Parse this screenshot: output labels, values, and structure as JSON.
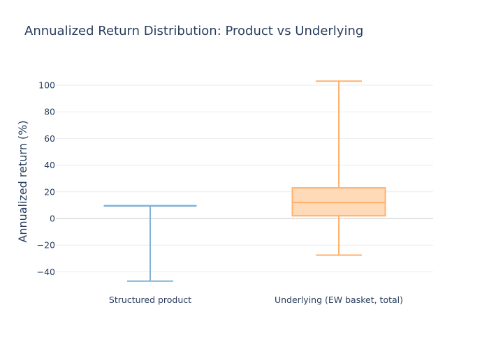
{
  "chart_data": {
    "type": "box",
    "title": "Annualized Return Distribution: Product vs Underlying",
    "ylabel": "Annualized return (%)",
    "xlabel": "",
    "ylim": [
      -48,
      114
    ],
    "yticks": [
      -40,
      -20,
      0,
      20,
      40,
      60,
      80,
      100
    ],
    "ytick_labels": [
      "−40",
      "−20",
      "0",
      "20",
      "40",
      "60",
      "80",
      "100"
    ],
    "grid": true,
    "legend": "none",
    "categories": [
      "Structured product",
      "Underlying (EW basket, total)"
    ],
    "series": [
      {
        "category": "Structured product",
        "min": -47,
        "q1": 9.5,
        "median": 9.5,
        "q3": 9.5,
        "max": 9.5,
        "color": "#7fb3d8"
      },
      {
        "category": "Underlying (EW basket, total)",
        "min": -27.5,
        "q1": 2,
        "median": 12,
        "q3": 23,
        "max": 103,
        "color": "#ffb16e",
        "fill": "#ffdab9"
      }
    ]
  }
}
